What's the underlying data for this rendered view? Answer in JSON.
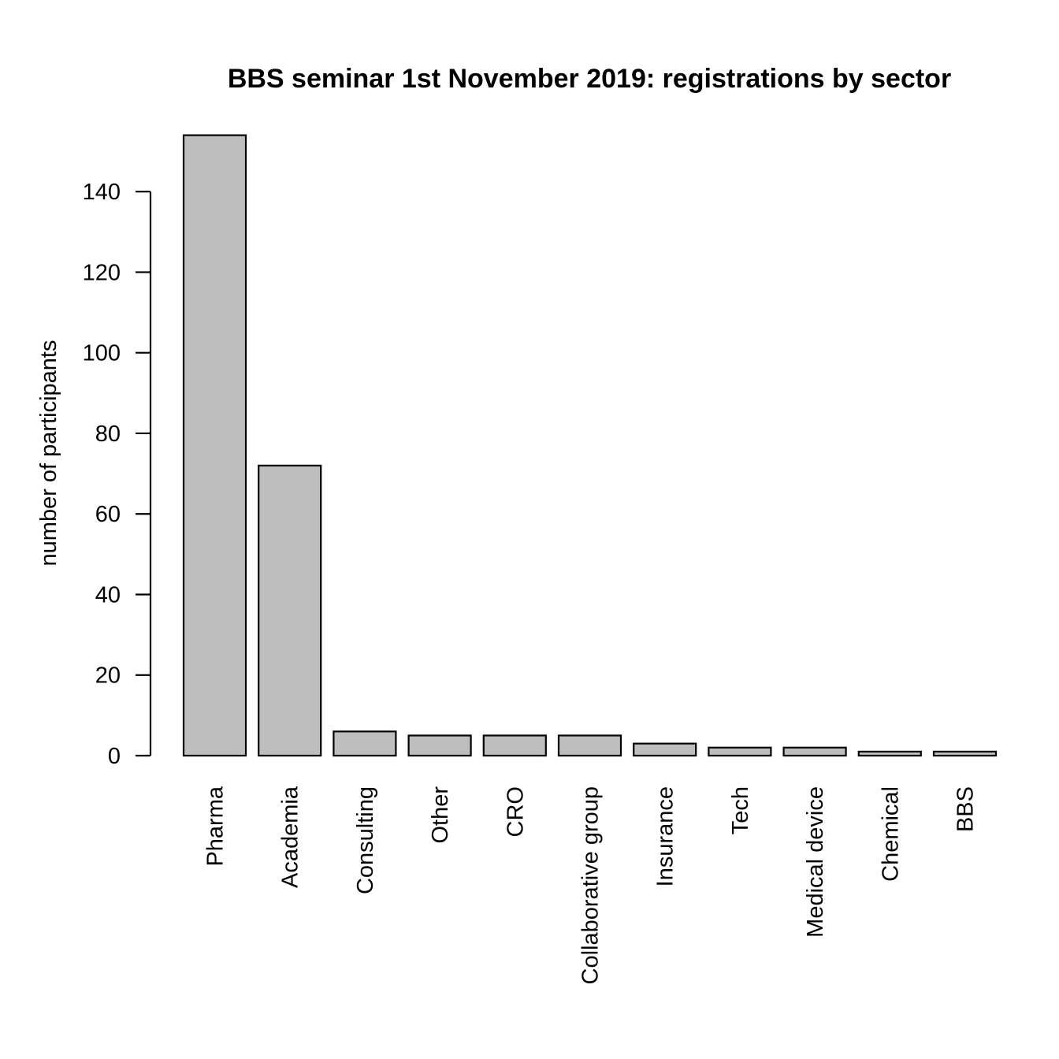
{
  "chart_data": {
    "type": "bar",
    "title": "BBS seminar 1st November 2019: registrations by sector",
    "xlabel": "",
    "ylabel": "number of participants",
    "categories": [
      "Pharma",
      "Academia",
      "Consulting",
      "Other",
      "CRO",
      "Collaborative group",
      "Insurance",
      "Tech",
      "Medical device",
      "Chemical",
      "BBS"
    ],
    "values": [
      154,
      72,
      6,
      5,
      5,
      5,
      3,
      2,
      2,
      1,
      1
    ],
    "yticks": [
      0,
      20,
      40,
      60,
      80,
      100,
      120,
      140
    ],
    "ylim": [
      0,
      154
    ],
    "grid": false,
    "colors": {
      "bar_fill": "#bebebe",
      "bar_stroke": "#000000"
    }
  }
}
